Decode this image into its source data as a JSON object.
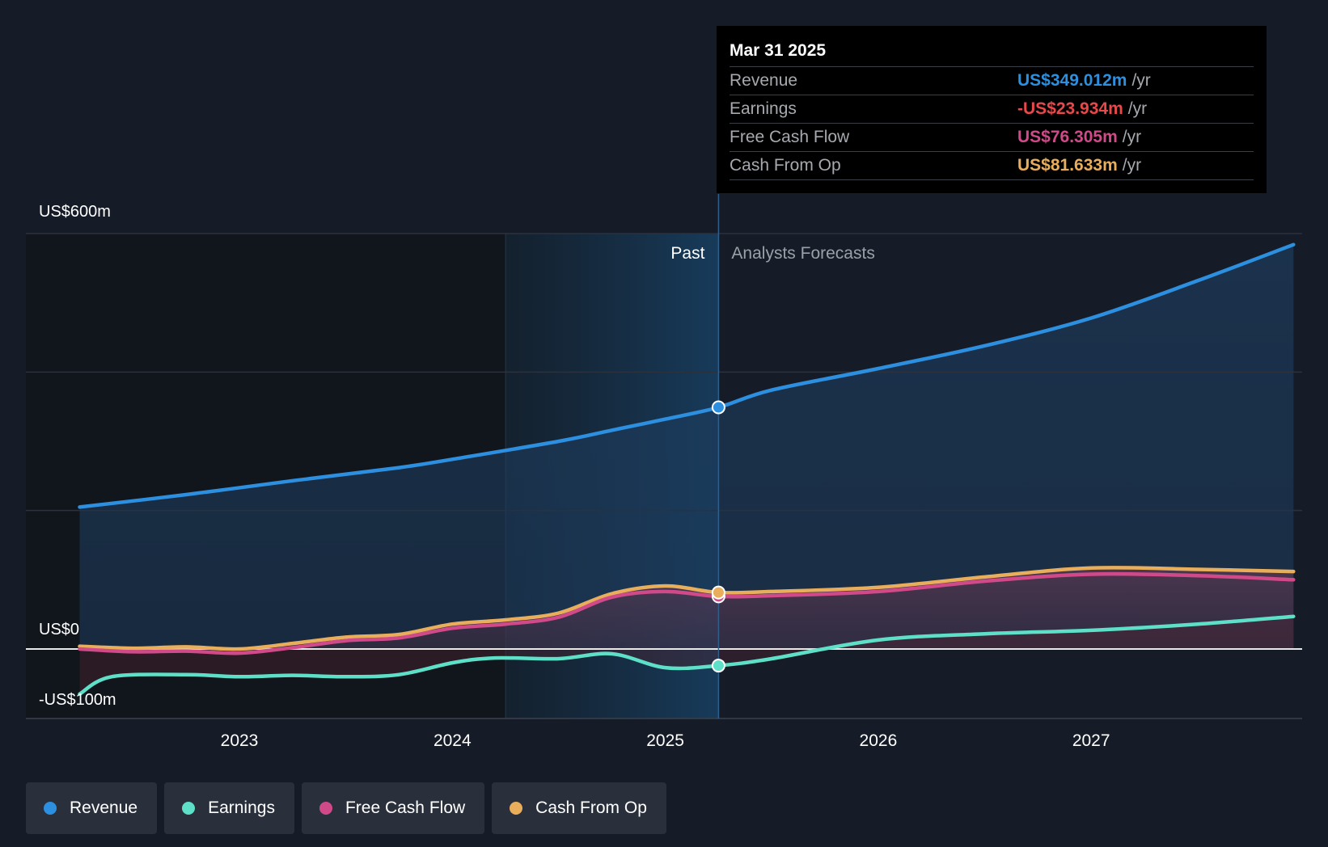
{
  "chart_data": {
    "type": "line",
    "y_axis_labels": [
      "US$600m",
      "US$0",
      "-US$100m"
    ],
    "ylim": [
      -100,
      600
    ],
    "x_ticks": [
      {
        "label": "2023",
        "x": 2023.0
      },
      {
        "label": "2024",
        "x": 2024.0
      },
      {
        "label": "2025",
        "x": 2025.0
      },
      {
        "label": "2026",
        "x": 2026.0
      },
      {
        "label": "2027",
        "x": 2027.0
      }
    ],
    "xlim": [
      2022.0,
      2028.0
    ],
    "past_label": "Past",
    "forecast_label": "Analysts Forecasts",
    "divider_x": 2025.25,
    "shade_start_x": 2024.25,
    "series": [
      {
        "name": "Revenue",
        "color": "#2d8fdf",
        "points": [
          [
            2022.25,
            205
          ],
          [
            2022.75,
            223
          ],
          [
            2023.25,
            243
          ],
          [
            2023.75,
            262
          ],
          [
            2024.0,
            274
          ],
          [
            2024.5,
            300
          ],
          [
            2024.75,
            316
          ],
          [
            2025.0,
            332
          ],
          [
            2025.25,
            349
          ],
          [
            2025.5,
            374
          ],
          [
            2026.0,
            405
          ],
          [
            2026.5,
            438
          ],
          [
            2027.0,
            478
          ],
          [
            2027.5,
            532
          ],
          [
            2027.95,
            584
          ]
        ]
      },
      {
        "name": "Earnings",
        "color": "#5ee0c8",
        "points": [
          [
            2022.25,
            -65
          ],
          [
            2022.4,
            -40
          ],
          [
            2022.75,
            -37
          ],
          [
            2023.0,
            -40
          ],
          [
            2023.25,
            -38
          ],
          [
            2023.5,
            -40
          ],
          [
            2023.75,
            -37
          ],
          [
            2024.0,
            -20
          ],
          [
            2024.2,
            -13
          ],
          [
            2024.5,
            -14
          ],
          [
            2024.75,
            -7
          ],
          [
            2025.0,
            -27
          ],
          [
            2025.25,
            -24
          ],
          [
            2025.5,
            -14
          ],
          [
            2026.0,
            13
          ],
          [
            2026.5,
            22
          ],
          [
            2027.0,
            27
          ],
          [
            2027.5,
            36
          ],
          [
            2027.95,
            47
          ]
        ]
      },
      {
        "name": "Free Cash Flow",
        "color": "#d04a8a",
        "points": [
          [
            2022.25,
            0
          ],
          [
            2022.5,
            -4
          ],
          [
            2022.75,
            -3
          ],
          [
            2023.0,
            -6
          ],
          [
            2023.25,
            2
          ],
          [
            2023.5,
            12
          ],
          [
            2023.75,
            16
          ],
          [
            2024.0,
            30
          ],
          [
            2024.25,
            36
          ],
          [
            2024.5,
            46
          ],
          [
            2024.75,
            75
          ],
          [
            2025.0,
            83
          ],
          [
            2025.25,
            76
          ],
          [
            2025.5,
            77
          ],
          [
            2026.0,
            83
          ],
          [
            2026.5,
            98
          ],
          [
            2027.0,
            108
          ],
          [
            2027.5,
            106
          ],
          [
            2027.95,
            100
          ]
        ]
      },
      {
        "name": "Cash From Op",
        "color": "#e9ae5c",
        "points": [
          [
            2022.25,
            4
          ],
          [
            2022.5,
            1
          ],
          [
            2022.75,
            3
          ],
          [
            2023.0,
            0
          ],
          [
            2023.25,
            8
          ],
          [
            2023.5,
            17
          ],
          [
            2023.75,
            21
          ],
          [
            2024.0,
            36
          ],
          [
            2024.25,
            42
          ],
          [
            2024.5,
            52
          ],
          [
            2024.75,
            80
          ],
          [
            2025.0,
            91
          ],
          [
            2025.25,
            81.6
          ],
          [
            2025.5,
            83
          ],
          [
            2026.0,
            89
          ],
          [
            2026.5,
            104
          ],
          [
            2027.0,
            117
          ],
          [
            2027.5,
            115
          ],
          [
            2027.95,
            112
          ]
        ]
      }
    ],
    "tooltip": {
      "date": "Mar 31 2025",
      "rows": [
        {
          "label": "Revenue",
          "value": "US$349.012m",
          "unit": "/yr",
          "color": "#2d8fdf"
        },
        {
          "label": "Earnings",
          "value": "-US$23.934m",
          "unit": "/yr",
          "color": "#e9484b"
        },
        {
          "label": "Free Cash Flow",
          "value": "US$76.305m",
          "unit": "/yr",
          "color": "#d04a8a"
        },
        {
          "label": "Cash From Op",
          "value": "US$81.633m",
          "unit": "/yr",
          "color": "#e9ae5c"
        }
      ]
    },
    "legend": [
      {
        "label": "Revenue",
        "color": "#2d8fdf"
      },
      {
        "label": "Earnings",
        "color": "#5ee0c8"
      },
      {
        "label": "Free Cash Flow",
        "color": "#d04a8a"
      },
      {
        "label": "Cash From Op",
        "color": "#e9ae5c"
      }
    ]
  }
}
